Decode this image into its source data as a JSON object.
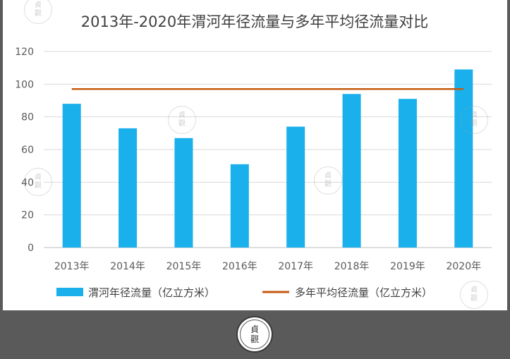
{
  "watermark": {
    "line1": "貞",
    "line2": "觀"
  },
  "colors": {
    "bar": "#1ab0ec",
    "line": "#c55a11",
    "grid": "#d9d9d9",
    "axis": "#bfbfbf"
  },
  "chart_data": {
    "type": "bar",
    "title": "2013年-2020年渭河年径流量与多年平均径流量对比",
    "categories": [
      "2013年",
      "2014年",
      "2015年",
      "2016年",
      "2017年",
      "2018年",
      "2019年",
      "2020年"
    ],
    "series": [
      {
        "name": "渭河年径流量（亿立方米）",
        "type": "bar",
        "values": [
          88,
          73,
          67,
          51,
          74,
          94,
          91,
          109
        ]
      },
      {
        "name": "多年平均径流量（亿立方米）",
        "type": "line",
        "values": [
          97,
          97,
          97,
          97,
          97,
          97,
          97,
          97
        ]
      }
    ],
    "ylim": [
      0,
      120
    ],
    "yticks": [
      0,
      20,
      40,
      60,
      80,
      100,
      120
    ],
    "grid": true,
    "legend_position": "bottom"
  }
}
